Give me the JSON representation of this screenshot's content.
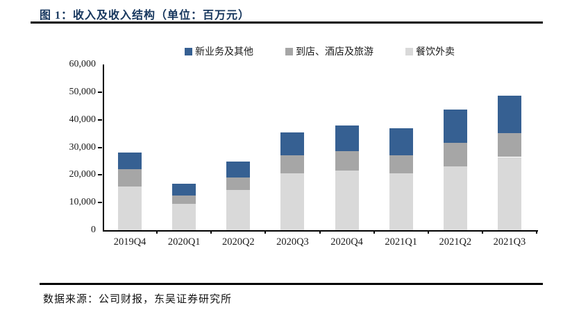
{
  "header": {
    "title": "图 1：收入及收入结构（单位：百万元）"
  },
  "footer": {
    "source": "数据来源：公司财报，东吴证券研究所"
  },
  "colors": {
    "title_text": "#17375e",
    "rule": "#000000",
    "axis_text": "#1a1a1a",
    "new_business_blue": "#366092",
    "instore_gray": "#a6a6a6",
    "food_delivery_lightgray": "#d9d9d9"
  },
  "chart_data": {
    "type": "bar",
    "stacked": true,
    "title": "收入及收入结构（单位：百万元）",
    "xlabel": "",
    "ylabel": "",
    "ylim": [
      0,
      60000
    ],
    "ytick_interval": 10000,
    "ytick_labels": [
      "60,000",
      "50,000",
      "40,000",
      "30,000",
      "20,000",
      "10,000",
      "0"
    ],
    "grid": false,
    "legend_position": "top",
    "legend_order": [
      "新业务及其他",
      "到店、酒店及旅游",
      "餐饮外卖"
    ],
    "categories": [
      "2019Q4",
      "2020Q1",
      "2020Q2",
      "2020Q3",
      "2020Q4",
      "2021Q1",
      "2021Q2",
      "2021Q3"
    ],
    "series": [
      {
        "name": "餐饮外卖",
        "color": "#d9d9d9",
        "values": [
          15705,
          9486,
          14544,
          20693,
          21536,
          20575,
          23125,
          26485
        ]
      },
      {
        "name": "到店、酒店及旅游",
        "color": "#a6a6a6",
        "values": [
          6364,
          3095,
          4541,
          6478,
          7135,
          6584,
          8602,
          8621
        ]
      },
      {
        "name": "新业务及其他",
        "color": "#366092",
        "values": [
          6088,
          4173,
          5664,
          8265,
          9247,
          9857,
          12032,
          13718
        ]
      }
    ],
    "totals": [
      28157,
      16754,
      24749,
      35436,
      37918,
      37016,
      43759,
      48824
    ]
  }
}
